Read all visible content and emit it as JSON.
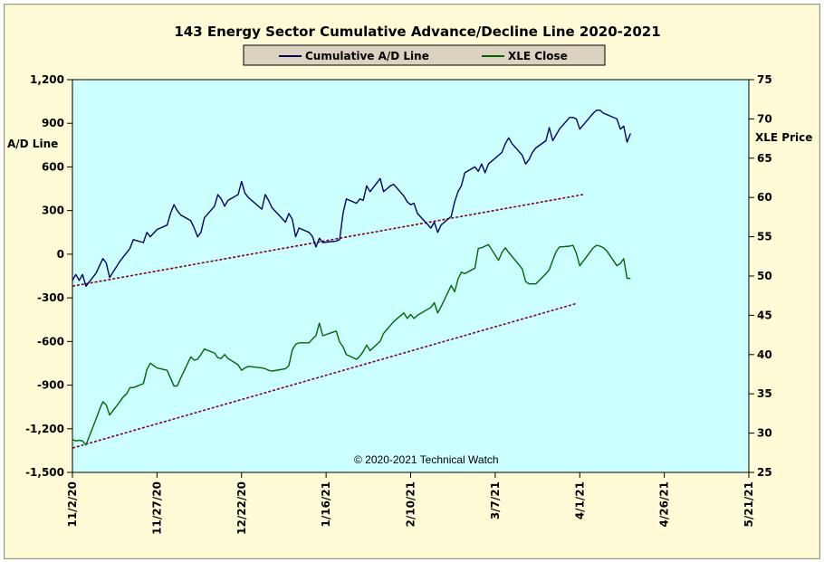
{
  "chart_data": {
    "type": "line",
    "title": "143 Energy Sector Cumulative Advance/Decline Line 2020-2021",
    "credit": "© 2020-2021  Technical Watch",
    "ylabel_left": "A/D Line",
    "ylabel_right": "XLE Price",
    "legend_placement": "top-center",
    "grid": false,
    "background_color": "#ccffff",
    "x_axis": {
      "type": "date",
      "range": [
        "2020-11-02",
        "2021-05-21"
      ],
      "tick_labels": [
        "11/2/20",
        "11/27/20",
        "12/22/20",
        "1/16/21",
        "2/10/21",
        "3/7/21",
        "4/1/21",
        "4/26/21",
        "5/21/21"
      ]
    },
    "y_left": {
      "range": [
        -1500,
        1200
      ],
      "tick_labels": [
        "1,200",
        "900",
        "600",
        "300",
        "0",
        "-300",
        "-600",
        "-900",
        "-1,200",
        "-1,500"
      ]
    },
    "y_right": {
      "range": [
        25,
        75
      ],
      "tick_labels": [
        "75",
        "70",
        "65",
        "60",
        "55",
        "50",
        "45",
        "40",
        "35",
        "30",
        "25"
      ]
    },
    "series": [
      {
        "name": "Cumulative A/D Line",
        "axis": "left",
        "color": "#000066",
        "points": [
          [
            "2020-11-02",
            -180
          ],
          [
            "2020-11-03",
            -140
          ],
          [
            "2020-11-04",
            -180
          ],
          [
            "2020-11-05",
            -140
          ],
          [
            "2020-11-06",
            -220
          ],
          [
            "2020-11-09",
            -130
          ],
          [
            "2020-11-10",
            -80
          ],
          [
            "2020-11-11",
            -30
          ],
          [
            "2020-11-12",
            -60
          ],
          [
            "2020-11-13",
            -160
          ],
          [
            "2020-11-16",
            -50
          ],
          [
            "2020-11-17",
            -20
          ],
          [
            "2020-11-18",
            10
          ],
          [
            "2020-11-19",
            40
          ],
          [
            "2020-11-20",
            100
          ],
          [
            "2020-11-23",
            80
          ],
          [
            "2020-11-24",
            150
          ],
          [
            "2020-11-25",
            120
          ],
          [
            "2020-11-27",
            170
          ],
          [
            "2020-11-30",
            200
          ],
          [
            "2020-12-01",
            280
          ],
          [
            "2020-12-02",
            340
          ],
          [
            "2020-12-03",
            300
          ],
          [
            "2020-12-04",
            270
          ],
          [
            "2020-12-07",
            230
          ],
          [
            "2020-12-08",
            180
          ],
          [
            "2020-12-09",
            120
          ],
          [
            "2020-12-10",
            150
          ],
          [
            "2020-12-11",
            250
          ],
          [
            "2020-12-14",
            330
          ],
          [
            "2020-12-15",
            410
          ],
          [
            "2020-12-16",
            380
          ],
          [
            "2020-12-17",
            330
          ],
          [
            "2020-12-18",
            370
          ],
          [
            "2020-12-21",
            410
          ],
          [
            "2020-12-22",
            500
          ],
          [
            "2020-12-23",
            420
          ],
          [
            "2020-12-24",
            390
          ],
          [
            "2020-12-28",
            310
          ],
          [
            "2020-12-29",
            410
          ],
          [
            "2020-12-30",
            370
          ],
          [
            "2020-12-31",
            320
          ],
          [
            "2021-01-04",
            220
          ],
          [
            "2021-01-05",
            280
          ],
          [
            "2021-01-06",
            240
          ],
          [
            "2021-01-07",
            120
          ],
          [
            "2021-01-08",
            180
          ],
          [
            "2021-01-11",
            150
          ],
          [
            "2021-01-12",
            120
          ],
          [
            "2021-01-13",
            50
          ],
          [
            "2021-01-14",
            110
          ],
          [
            "2021-01-15",
            80
          ],
          [
            "2021-01-19",
            90
          ],
          [
            "2021-01-20",
            100
          ],
          [
            "2021-01-21",
            280
          ],
          [
            "2021-01-22",
            380
          ],
          [
            "2021-01-25",
            350
          ],
          [
            "2021-01-26",
            380
          ],
          [
            "2021-01-27",
            370
          ],
          [
            "2021-01-28",
            470
          ],
          [
            "2021-01-29",
            430
          ],
          [
            "2021-02-01",
            520
          ],
          [
            "2021-02-02",
            430
          ],
          [
            "2021-02-03",
            450
          ],
          [
            "2021-02-04",
            470
          ],
          [
            "2021-02-05",
            480
          ],
          [
            "2021-02-08",
            400
          ],
          [
            "2021-02-09",
            360
          ],
          [
            "2021-02-10",
            340
          ],
          [
            "2021-02-11",
            350
          ],
          [
            "2021-02-12",
            280
          ],
          [
            "2021-02-16",
            180
          ],
          [
            "2021-02-17",
            220
          ],
          [
            "2021-02-18",
            150
          ],
          [
            "2021-02-19",
            200
          ],
          [
            "2021-02-22",
            260
          ],
          [
            "2021-02-23",
            360
          ],
          [
            "2021-02-24",
            430
          ],
          [
            "2021-02-25",
            470
          ],
          [
            "2021-02-26",
            560
          ],
          [
            "2021-03-01",
            600
          ],
          [
            "2021-03-02",
            570
          ],
          [
            "2021-03-03",
            620
          ],
          [
            "2021-03-04",
            560
          ],
          [
            "2021-03-05",
            620
          ],
          [
            "2021-03-08",
            680
          ],
          [
            "2021-03-09",
            700
          ],
          [
            "2021-03-10",
            760
          ],
          [
            "2021-03-11",
            800
          ],
          [
            "2021-03-12",
            760
          ],
          [
            "2021-03-15",
            680
          ],
          [
            "2021-03-16",
            620
          ],
          [
            "2021-03-17",
            650
          ],
          [
            "2021-03-18",
            700
          ],
          [
            "2021-03-19",
            730
          ],
          [
            "2021-03-22",
            780
          ],
          [
            "2021-03-23",
            870
          ],
          [
            "2021-03-24",
            780
          ],
          [
            "2021-03-25",
            820
          ],
          [
            "2021-03-26",
            860
          ],
          [
            "2021-03-29",
            940
          ],
          [
            "2021-03-30",
            940
          ],
          [
            "2021-03-31",
            930
          ],
          [
            "2021-04-01",
            860
          ],
          [
            "2021-04-05",
            970
          ],
          [
            "2021-04-06",
            990
          ],
          [
            "2021-04-07",
            990
          ],
          [
            "2021-04-08",
            970
          ],
          [
            "2021-04-09",
            960
          ],
          [
            "2021-04-12",
            930
          ],
          [
            "2021-04-13",
            860
          ],
          [
            "2021-04-14",
            880
          ],
          [
            "2021-04-15",
            770
          ],
          [
            "2021-04-16",
            830
          ]
        ]
      },
      {
        "name": "XLE Close",
        "axis": "right",
        "color": "#006600",
        "points": [
          [
            "2020-11-02",
            29.2
          ],
          [
            "2020-11-03",
            29.0
          ],
          [
            "2020-11-04",
            29.1
          ],
          [
            "2020-11-05",
            29.0
          ],
          [
            "2020-11-06",
            28.5
          ],
          [
            "2020-11-09",
            31.8
          ],
          [
            "2020-11-10",
            33.0
          ],
          [
            "2020-11-11",
            34.0
          ],
          [
            "2020-11-12",
            33.6
          ],
          [
            "2020-11-13",
            32.3
          ],
          [
            "2020-11-16",
            34.0
          ],
          [
            "2020-11-17",
            34.6
          ],
          [
            "2020-11-18",
            35.0
          ],
          [
            "2020-11-19",
            35.8
          ],
          [
            "2020-11-20",
            35.8
          ],
          [
            "2020-11-23",
            36.3
          ],
          [
            "2020-11-24",
            38.1
          ],
          [
            "2020-11-25",
            38.9
          ],
          [
            "2020-11-27",
            38.3
          ],
          [
            "2020-11-30",
            38.0
          ],
          [
            "2020-12-01",
            37.0
          ],
          [
            "2020-12-02",
            36.0
          ],
          [
            "2020-12-03",
            36.0
          ],
          [
            "2020-12-04",
            37.0
          ],
          [
            "2020-12-07",
            39.7
          ],
          [
            "2020-12-08",
            39.3
          ],
          [
            "2020-12-09",
            39.4
          ],
          [
            "2020-12-10",
            40.0
          ],
          [
            "2020-12-11",
            40.7
          ],
          [
            "2020-12-14",
            40.2
          ],
          [
            "2020-12-15",
            39.6
          ],
          [
            "2020-12-16",
            39.5
          ],
          [
            "2020-12-17",
            40.0
          ],
          [
            "2020-12-18",
            39.5
          ],
          [
            "2020-12-21",
            38.7
          ],
          [
            "2020-12-22",
            38.0
          ],
          [
            "2020-12-23",
            38.3
          ],
          [
            "2020-12-24",
            38.5
          ],
          [
            "2020-12-28",
            38.3
          ],
          [
            "2020-12-29",
            38.2
          ],
          [
            "2020-12-30",
            38.0
          ],
          [
            "2020-12-31",
            37.9
          ],
          [
            "2021-01-04",
            38.2
          ],
          [
            "2021-01-05",
            38.6
          ],
          [
            "2021-01-06",
            40.6
          ],
          [
            "2021-01-07",
            41.3
          ],
          [
            "2021-01-08",
            41.5
          ],
          [
            "2021-01-11",
            41.5
          ],
          [
            "2021-01-12",
            42.0
          ],
          [
            "2021-01-13",
            42.4
          ],
          [
            "2021-01-14",
            44.0
          ],
          [
            "2021-01-15",
            42.4
          ],
          [
            "2021-01-19",
            43.0
          ],
          [
            "2021-01-20",
            41.6
          ],
          [
            "2021-01-21",
            41.0
          ],
          [
            "2021-01-22",
            40.0
          ],
          [
            "2021-01-25",
            39.4
          ],
          [
            "2021-01-26",
            39.8
          ],
          [
            "2021-01-27",
            40.4
          ],
          [
            "2021-01-28",
            41.2
          ],
          [
            "2021-01-29",
            40.5
          ],
          [
            "2021-02-01",
            41.7
          ],
          [
            "2021-02-02",
            42.7
          ],
          [
            "2021-02-03",
            43.2
          ],
          [
            "2021-02-04",
            43.7
          ],
          [
            "2021-02-05",
            44.2
          ],
          [
            "2021-02-08",
            45.3
          ],
          [
            "2021-02-09",
            44.6
          ],
          [
            "2021-02-10",
            45.1
          ],
          [
            "2021-02-11",
            44.6
          ],
          [
            "2021-02-12",
            45.0
          ],
          [
            "2021-02-16",
            46.0
          ],
          [
            "2021-02-17",
            46.6
          ],
          [
            "2021-02-18",
            45.3
          ],
          [
            "2021-02-19",
            46.1
          ],
          [
            "2021-02-22",
            48.8
          ],
          [
            "2021-02-23",
            48.0
          ],
          [
            "2021-02-24",
            49.6
          ],
          [
            "2021-02-25",
            50.5
          ],
          [
            "2021-02-26",
            50.3
          ],
          [
            "2021-03-01",
            51.0
          ],
          [
            "2021-03-02",
            53.5
          ],
          [
            "2021-03-03",
            53.6
          ],
          [
            "2021-03-04",
            53.8
          ],
          [
            "2021-03-05",
            54.0
          ],
          [
            "2021-03-08",
            52.0
          ],
          [
            "2021-03-09",
            53.0
          ],
          [
            "2021-03-10",
            53.6
          ],
          [
            "2021-03-11",
            53.0
          ],
          [
            "2021-03-12",
            52.5
          ],
          [
            "2021-03-15",
            50.9
          ],
          [
            "2021-03-16",
            49.3
          ],
          [
            "2021-03-17",
            49.0
          ],
          [
            "2021-03-18",
            49.0
          ],
          [
            "2021-03-19",
            49.0
          ],
          [
            "2021-03-22",
            50.3
          ],
          [
            "2021-03-23",
            50.8
          ],
          [
            "2021-03-24",
            52.0
          ],
          [
            "2021-03-25",
            53.1
          ],
          [
            "2021-03-26",
            53.7
          ],
          [
            "2021-03-29",
            53.8
          ],
          [
            "2021-03-30",
            53.9
          ],
          [
            "2021-03-31",
            52.9
          ],
          [
            "2021-04-01",
            51.3
          ],
          [
            "2021-04-05",
            53.6
          ],
          [
            "2021-04-06",
            53.9
          ],
          [
            "2021-04-07",
            53.8
          ],
          [
            "2021-04-08",
            53.6
          ],
          [
            "2021-04-09",
            53.2
          ],
          [
            "2021-04-12",
            51.3
          ],
          [
            "2021-04-13",
            51.6
          ],
          [
            "2021-04-14",
            52.2
          ],
          [
            "2021-04-15",
            49.7
          ],
          [
            "2021-04-16",
            49.7
          ]
        ]
      }
    ],
    "trendlines": [
      {
        "axis": "left",
        "color": "#800020",
        "style": "dashed",
        "from": [
          "2020-11-02",
          -220
        ],
        "to": [
          "2021-04-02",
          410
        ]
      },
      {
        "axis": "right",
        "color": "#800040",
        "style": "dashed",
        "from": [
          "2020-11-02",
          28.1
        ],
        "to": [
          "2021-03-31",
          46.5
        ]
      }
    ]
  }
}
